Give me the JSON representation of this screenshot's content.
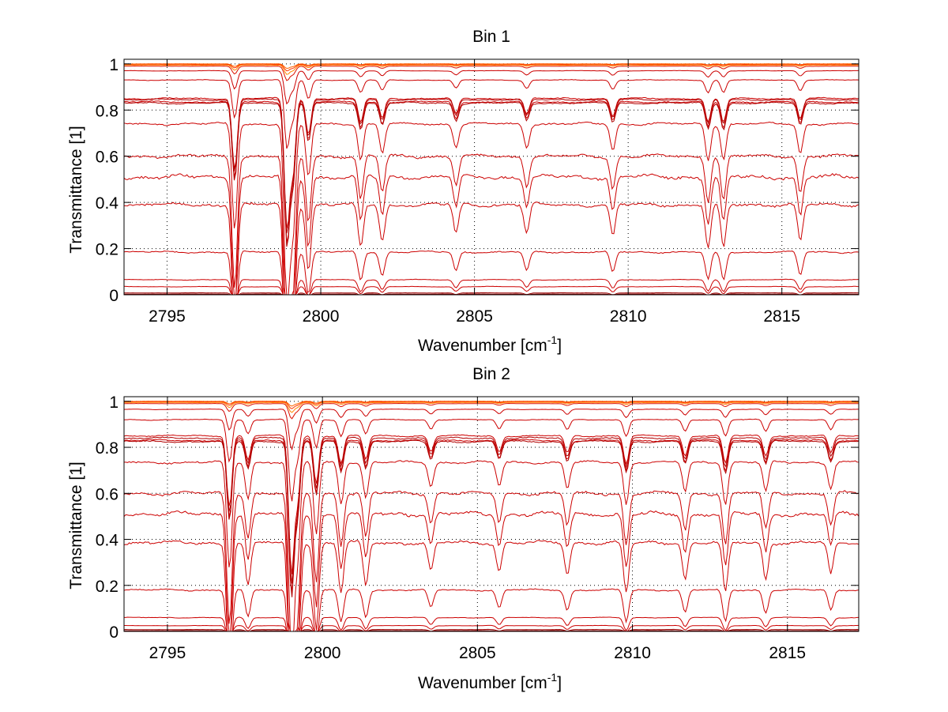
{
  "chart_data": [
    {
      "type": "line",
      "title": "Bin 1",
      "xlabel_main": "Wavenumber [cm",
      "xlabel_sup": "-1",
      "xlabel_close": "]",
      "ylabel": "Transmittance [1]",
      "xlim": [
        2793.6,
        2817.5
      ],
      "ylim": [
        0,
        1.02
      ],
      "xticks": [
        2795,
        2800,
        2805,
        2810,
        2815
      ],
      "xtick_labels": [
        "2795",
        "2800",
        "2805",
        "2810",
        "2815"
      ],
      "yticks": [
        0,
        0.2,
        0.4,
        0.6,
        0.8,
        1
      ],
      "ytick_labels": [
        "0",
        "0.2",
        "0.4",
        "0.6",
        "0.8",
        "1"
      ],
      "grid": true,
      "absorption_lines": [
        {
          "x": 2797.2,
          "depth": 0.9
        },
        {
          "x": 2798.9,
          "depth": 1.6
        },
        {
          "x": 2799.1,
          "depth": 0.9
        },
        {
          "x": 2799.6,
          "depth": 0.45
        },
        {
          "x": 2801.3,
          "depth": 0.3
        },
        {
          "x": 2802.0,
          "depth": 0.25
        },
        {
          "x": 2804.4,
          "depth": 0.2
        },
        {
          "x": 2806.7,
          "depth": 0.2
        },
        {
          "x": 2809.5,
          "depth": 0.22
        },
        {
          "x": 2812.6,
          "depth": 0.3
        },
        {
          "x": 2813.1,
          "depth": 0.3
        },
        {
          "x": 2815.6,
          "depth": 0.25
        }
      ],
      "series": [
        {
          "baseline": 1.0,
          "color": "#ff6600"
        },
        {
          "baseline": 0.998,
          "color": "#ff3300"
        },
        {
          "baseline": 0.995,
          "color": "#ff8800"
        },
        {
          "baseline": 0.99,
          "color": "#dd1100"
        },
        {
          "baseline": 0.97,
          "color": "#cc0000"
        },
        {
          "baseline": 0.93,
          "color": "#cc0000"
        },
        {
          "baseline": 0.85,
          "color": "#cc0000"
        },
        {
          "baseline": 0.845,
          "color": "#b00000"
        },
        {
          "baseline": 0.835,
          "color": "#cc0000"
        },
        {
          "baseline": 0.83,
          "color": "#b00000"
        },
        {
          "baseline": 0.74,
          "color": "#cc0000"
        },
        {
          "baseline": 0.6,
          "color": "#cc0000"
        },
        {
          "baseline": 0.51,
          "color": "#cc0000"
        },
        {
          "baseline": 0.39,
          "color": "#cc0000"
        },
        {
          "baseline": 0.185,
          "color": "#cc0000"
        },
        {
          "baseline": 0.065,
          "color": "#cc0000"
        },
        {
          "baseline": 0.035,
          "color": "#cc0000"
        },
        {
          "baseline": 0.008,
          "color": "#990000"
        },
        {
          "baseline": 0.003,
          "color": "#880000"
        }
      ]
    },
    {
      "type": "line",
      "title": "Bin 2",
      "xlabel_main": "Wavenumber [cm",
      "xlabel_sup": "-1",
      "xlabel_close": "]",
      "ylabel": "Transmittance [1]",
      "xlim": [
        2793.6,
        2817.3
      ],
      "ylim": [
        0,
        1.02
      ],
      "xticks": [
        2795,
        2800,
        2805,
        2810,
        2815
      ],
      "xtick_labels": [
        "2795",
        "2800",
        "2805",
        "2810",
        "2815"
      ],
      "yticks": [
        0,
        0.2,
        0.4,
        0.6,
        0.8,
        1
      ],
      "ytick_labels": [
        "0",
        "0.2",
        "0.4",
        "0.6",
        "0.8",
        "1"
      ],
      "grid": true,
      "absorption_lines": [
        {
          "x": 2797.0,
          "depth": 0.9
        },
        {
          "x": 2797.6,
          "depth": 0.3
        },
        {
          "x": 2799.0,
          "depth": 1.7
        },
        {
          "x": 2799.2,
          "depth": 0.8
        },
        {
          "x": 2799.8,
          "depth": 0.6
        },
        {
          "x": 2800.6,
          "depth": 0.35
        },
        {
          "x": 2801.4,
          "depth": 0.3
        },
        {
          "x": 2803.5,
          "depth": 0.2
        },
        {
          "x": 2805.7,
          "depth": 0.2
        },
        {
          "x": 2807.9,
          "depth": 0.22
        },
        {
          "x": 2809.8,
          "depth": 0.35
        },
        {
          "x": 2811.7,
          "depth": 0.25
        },
        {
          "x": 2813.0,
          "depth": 0.35
        },
        {
          "x": 2814.3,
          "depth": 0.25
        },
        {
          "x": 2816.4,
          "depth": 0.22
        }
      ],
      "series": [
        {
          "baseline": 1.0,
          "color": "#ff6600"
        },
        {
          "baseline": 0.998,
          "color": "#ff3300"
        },
        {
          "baseline": 0.995,
          "color": "#ff8800"
        },
        {
          "baseline": 0.99,
          "color": "#dd1100"
        },
        {
          "baseline": 0.965,
          "color": "#cc0000"
        },
        {
          "baseline": 0.92,
          "color": "#cc0000"
        },
        {
          "baseline": 0.85,
          "color": "#cc0000"
        },
        {
          "baseline": 0.84,
          "color": "#b00000"
        },
        {
          "baseline": 0.83,
          "color": "#cc0000"
        },
        {
          "baseline": 0.825,
          "color": "#b00000"
        },
        {
          "baseline": 0.735,
          "color": "#cc0000"
        },
        {
          "baseline": 0.6,
          "color": "#cc0000"
        },
        {
          "baseline": 0.51,
          "color": "#cc0000"
        },
        {
          "baseline": 0.385,
          "color": "#cc0000"
        },
        {
          "baseline": 0.18,
          "color": "#cc0000"
        },
        {
          "baseline": 0.06,
          "color": "#cc0000"
        },
        {
          "baseline": 0.025,
          "color": "#cc0000"
        },
        {
          "baseline": 0.008,
          "color": "#990000"
        },
        {
          "baseline": 0.003,
          "color": "#880000"
        }
      ]
    }
  ]
}
